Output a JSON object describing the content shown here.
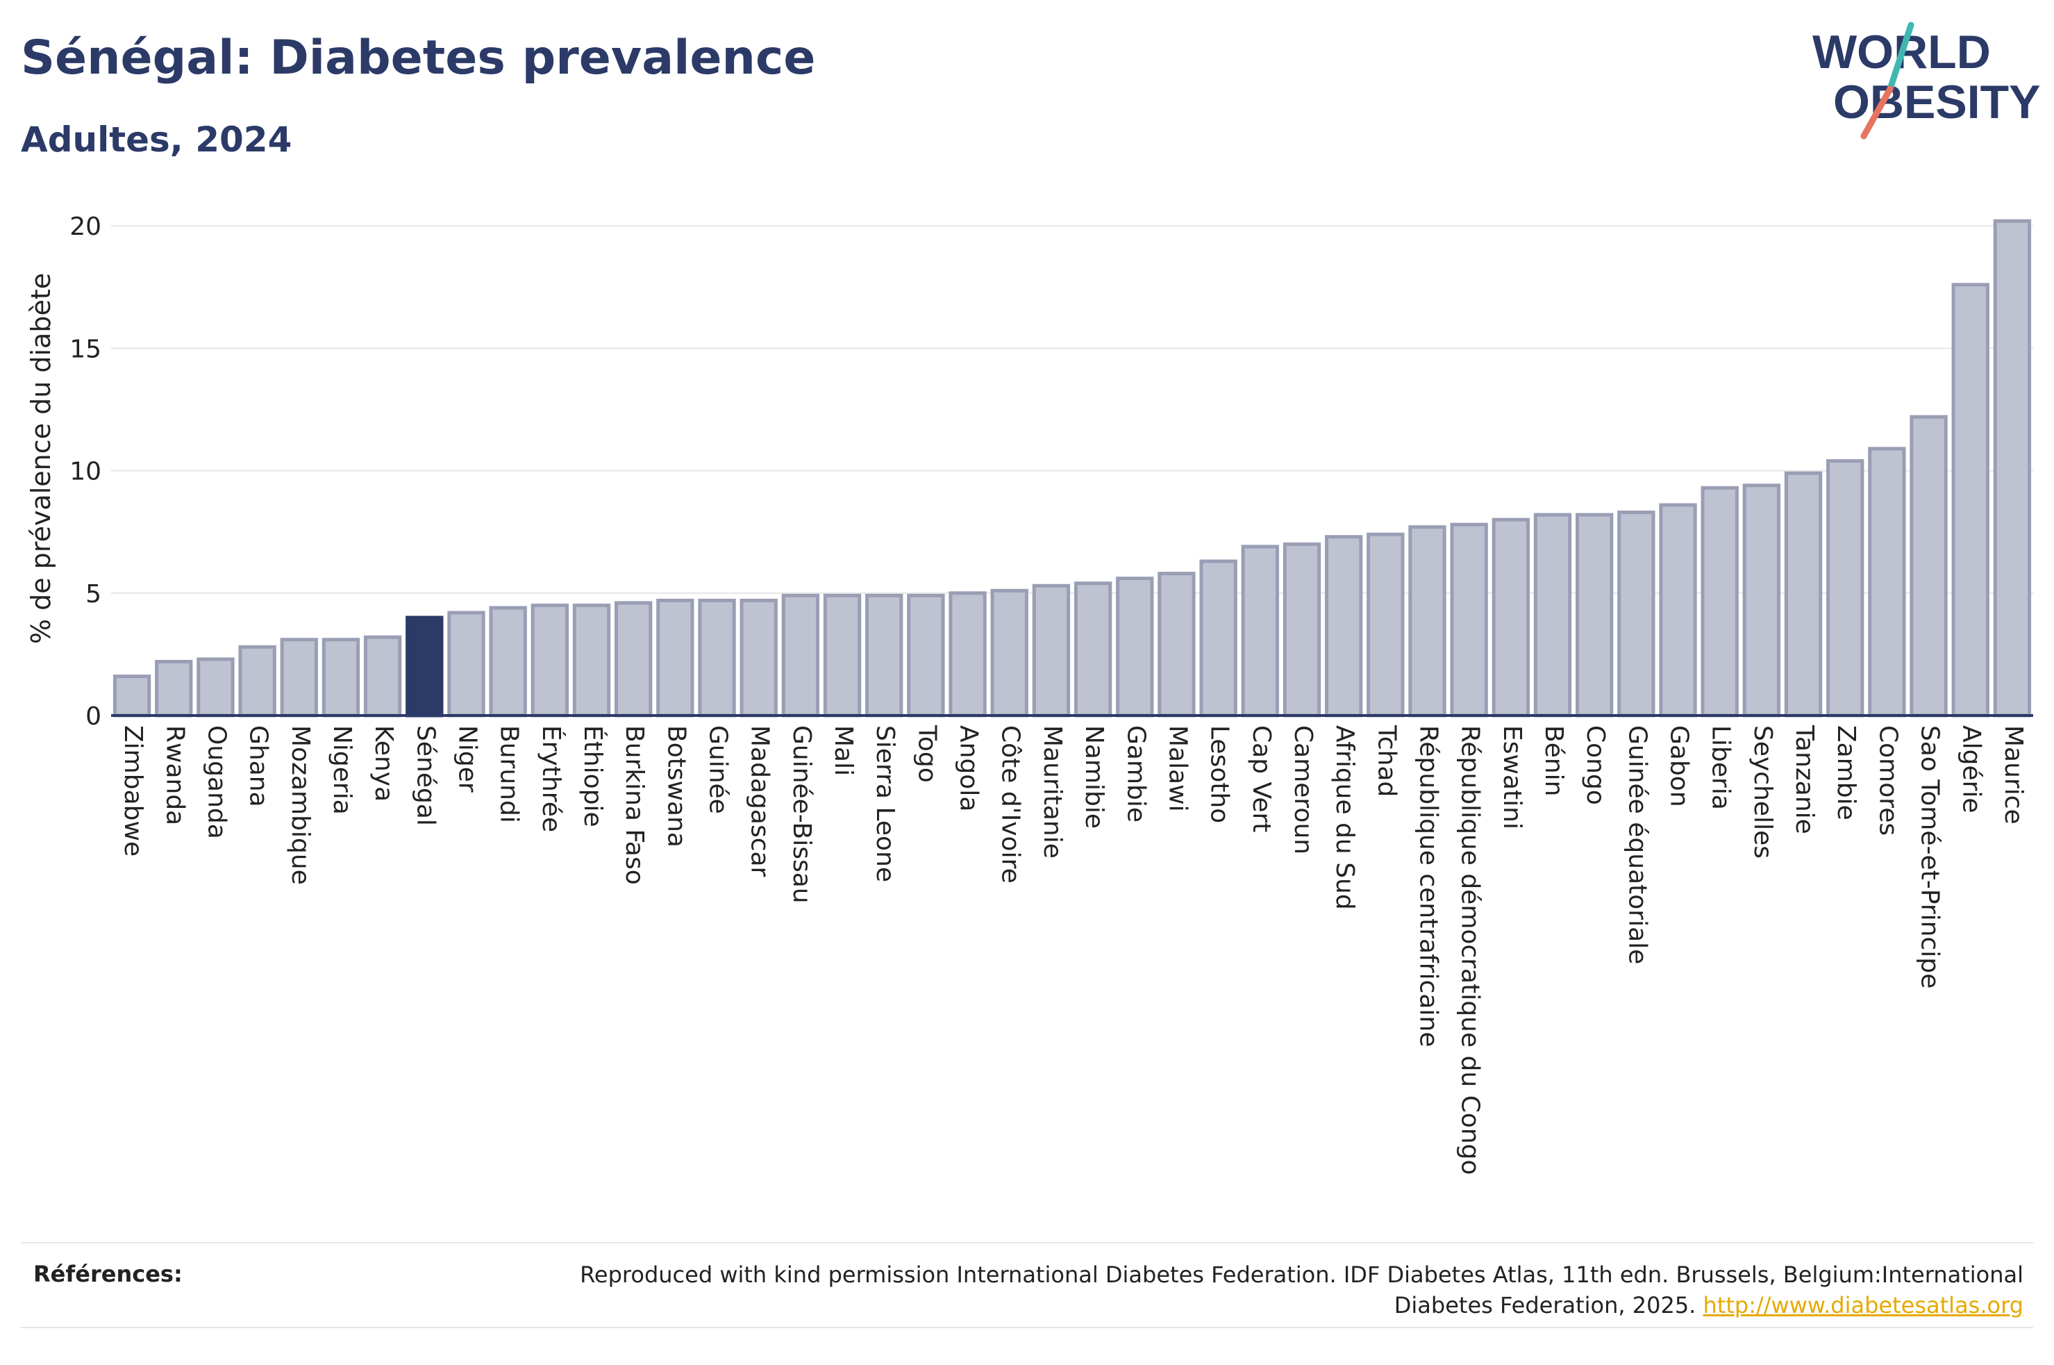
{
  "header": {
    "title": "Sénégal: Diabetes prevalence",
    "subtitle": "Adultes, 2024"
  },
  "logo": {
    "line1": "WORLD",
    "line2": "OBESITY",
    "accent_teal": "#3fb8b0",
    "accent_coral": "#e8735f",
    "text_color": "#2b3a67"
  },
  "chart_data": {
    "type": "bar",
    "title": "Sénégal: Diabetes prevalence",
    "subtitle": "Adultes, 2024",
    "xlabel": "",
    "ylabel": "% de prévalence du diabète",
    "ylim": [
      0,
      21
    ],
    "yticks": [
      0,
      5,
      10,
      15,
      20
    ],
    "grid": true,
    "highlight": "Sénégal",
    "colors": {
      "default": "#bfc2d0",
      "default_edge": "#9a9eb5",
      "highlight": "#2b3a67"
    },
    "categories": [
      "Zimbabwe",
      "Rwanda",
      "Ouganda",
      "Ghana",
      "Mozambique",
      "Nigeria",
      "Kenya",
      "Sénégal",
      "Niger",
      "Burundi",
      "Érythrée",
      "Éthiopie",
      "Burkina Faso",
      "Botswana",
      "Guinée",
      "Madagascar",
      "Guinée-Bissau",
      "Mali",
      "Sierra Leone",
      "Togo",
      "Angola",
      "Côte d'Ivoire",
      "Mauritanie",
      "Namibie",
      "Gambie",
      "Malawi",
      "Lesotho",
      "Cap Vert",
      "Cameroun",
      "Afrique du Sud",
      "Tchad",
      "République centrafricaine",
      "République démocratique du Congo",
      "Eswatini",
      "Bénin",
      "Congo",
      "Guinée équatoriale",
      "Gabon",
      "Liberia",
      "Seychelles",
      "Tanzanie",
      "Zambie",
      "Comores",
      "Sao Tomé-et-Principe",
      "Algérie",
      "Maurice"
    ],
    "values": [
      1.6,
      2.2,
      2.3,
      2.8,
      3.1,
      3.1,
      3.2,
      4.0,
      4.2,
      4.4,
      4.5,
      4.5,
      4.6,
      4.7,
      4.7,
      4.7,
      4.9,
      4.9,
      4.9,
      4.9,
      5.0,
      5.1,
      5.3,
      5.4,
      5.6,
      5.8,
      6.3,
      6.9,
      7.0,
      7.3,
      7.4,
      7.7,
      7.8,
      8.0,
      8.2,
      8.2,
      8.3,
      8.6,
      9.3,
      9.4,
      9.9,
      10.4,
      10.9,
      12.2,
      17.6,
      20.2
    ]
  },
  "footer": {
    "references_label": "Références:",
    "reference_text": "Reproduced with kind permission International Diabetes Federation. IDF Diabetes Atlas, 11th edn. Brussels, Belgium:International Diabetes Federation, 2025.",
    "reference_link": "http://www.diabetesatlas.org"
  }
}
